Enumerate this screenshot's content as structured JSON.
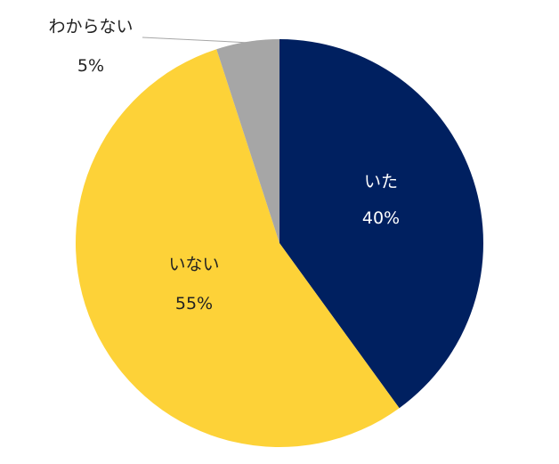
{
  "chart_data": {
    "type": "pie",
    "title": "",
    "start_angle_deg": 0,
    "direction": "clockwise",
    "legend": "none",
    "slices": [
      {
        "label": "いた",
        "value": 40,
        "value_label": "40%",
        "color": "#002060",
        "label_color": "#ffffff"
      },
      {
        "label": "いない",
        "value": 55,
        "value_label": "55%",
        "color": "#fdd238",
        "label_color": "#222222"
      },
      {
        "label": "わからない",
        "value": 5,
        "value_label": "5%",
        "color": "#a6a6a6",
        "label_color": "#222222"
      }
    ],
    "leader_line_color": "#a6a6a6"
  }
}
